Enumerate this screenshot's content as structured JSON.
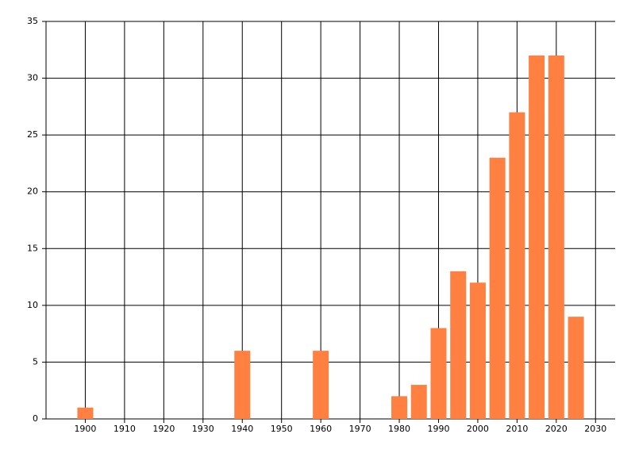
{
  "chart_data": {
    "type": "bar",
    "x": [
      1900,
      1940,
      1960,
      1980,
      1985,
      1990,
      1995,
      2000,
      2005,
      2010,
      2015,
      2020,
      2025
    ],
    "values": [
      1,
      6,
      6,
      2,
      3,
      8,
      13,
      12,
      23,
      27,
      32,
      32,
      9
    ],
    "color": "#ff8040",
    "xlim": [
      1890,
      2035
    ],
    "xticks": [
      1900,
      1910,
      1920,
      1930,
      1940,
      1950,
      1960,
      1970,
      1980,
      1990,
      2000,
      2010,
      2020,
      2030
    ],
    "ylim": [
      0,
      35
    ],
    "yticks": [
      0,
      5,
      10,
      15,
      20,
      25,
      30,
      35
    ],
    "grid": true
  }
}
